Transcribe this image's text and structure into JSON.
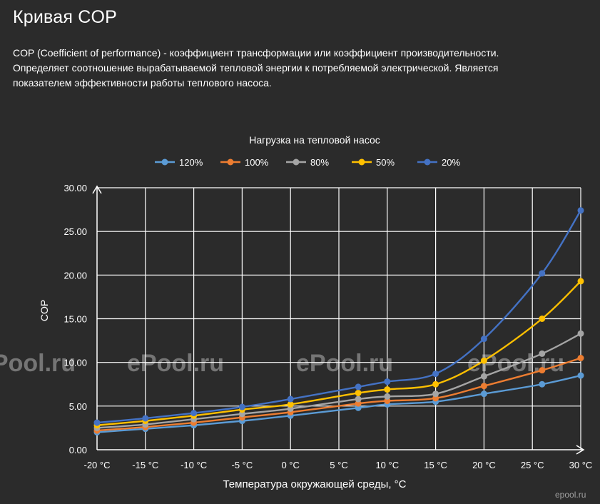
{
  "header": {
    "title": "Кривая COP",
    "description_line1": "COP (Coefficient of performance) - коэффициент трансформации или коэффициент производительности.",
    "description_line2": "Определяет соотношение вырабатываемой тепловой энергии к потребляемой электрической. Является",
    "description_line3": "показателем эффективности работы теплового насоса."
  },
  "watermarks": {
    "text": "ePool.ru",
    "corner": "epool.ru"
  },
  "chart_data": {
    "type": "line",
    "title": "Нагрузка на тепловой насос",
    "xlabel": "Температура окружающей среды, °C",
    "ylabel": "COP",
    "ylim": [
      0,
      30
    ],
    "xlim": [
      -20,
      30
    ],
    "x_tick_labels": [
      "-20 °C",
      "-15 °C",
      "-10 °C",
      "-5 °C",
      "0 °C",
      "5 °C",
      "10 °C",
      "15 °C",
      "20 °C",
      "25 °C",
      "30 °C"
    ],
    "y_tick_labels": [
      "0.00",
      "5.00",
      "10.00",
      "15.00",
      "20.00",
      "25.00",
      "30.00"
    ],
    "x_ticks": [
      -20,
      -15,
      -10,
      -5,
      0,
      5,
      10,
      15,
      20,
      25,
      30
    ],
    "y_ticks": [
      0,
      5,
      10,
      15,
      20,
      25,
      30
    ],
    "grid": true,
    "legend_position": "top",
    "x": [
      -20,
      -15,
      -10,
      -5,
      0,
      7,
      10,
      15,
      20,
      26,
      30
    ],
    "series": [
      {
        "name": "120%",
        "color": "#5b9bd5",
        "values": [
          2.0,
          2.4,
          2.8,
          3.3,
          3.9,
          4.8,
          5.2,
          5.5,
          6.4,
          7.5,
          8.5
        ]
      },
      {
        "name": "100%",
        "color": "#ed7d31",
        "values": [
          2.2,
          2.6,
          3.1,
          3.7,
          4.3,
          5.3,
          5.6,
          5.9,
          7.3,
          9.1,
          10.5
        ]
      },
      {
        "name": "80%",
        "color": "#a5a5a5",
        "values": [
          2.5,
          2.9,
          3.5,
          4.1,
          4.7,
          5.8,
          6.1,
          6.4,
          8.4,
          11.0,
          13.3
        ]
      },
      {
        "name": "50%",
        "color": "#ffc000",
        "values": [
          2.8,
          3.3,
          3.9,
          4.6,
          5.2,
          6.5,
          6.9,
          7.5,
          10.2,
          15.0,
          19.3
        ]
      },
      {
        "name": "20%",
        "color": "#4472c4",
        "values": [
          3.1,
          3.6,
          4.2,
          4.9,
          5.8,
          7.2,
          7.8,
          8.7,
          12.7,
          20.2,
          27.4
        ]
      }
    ]
  }
}
